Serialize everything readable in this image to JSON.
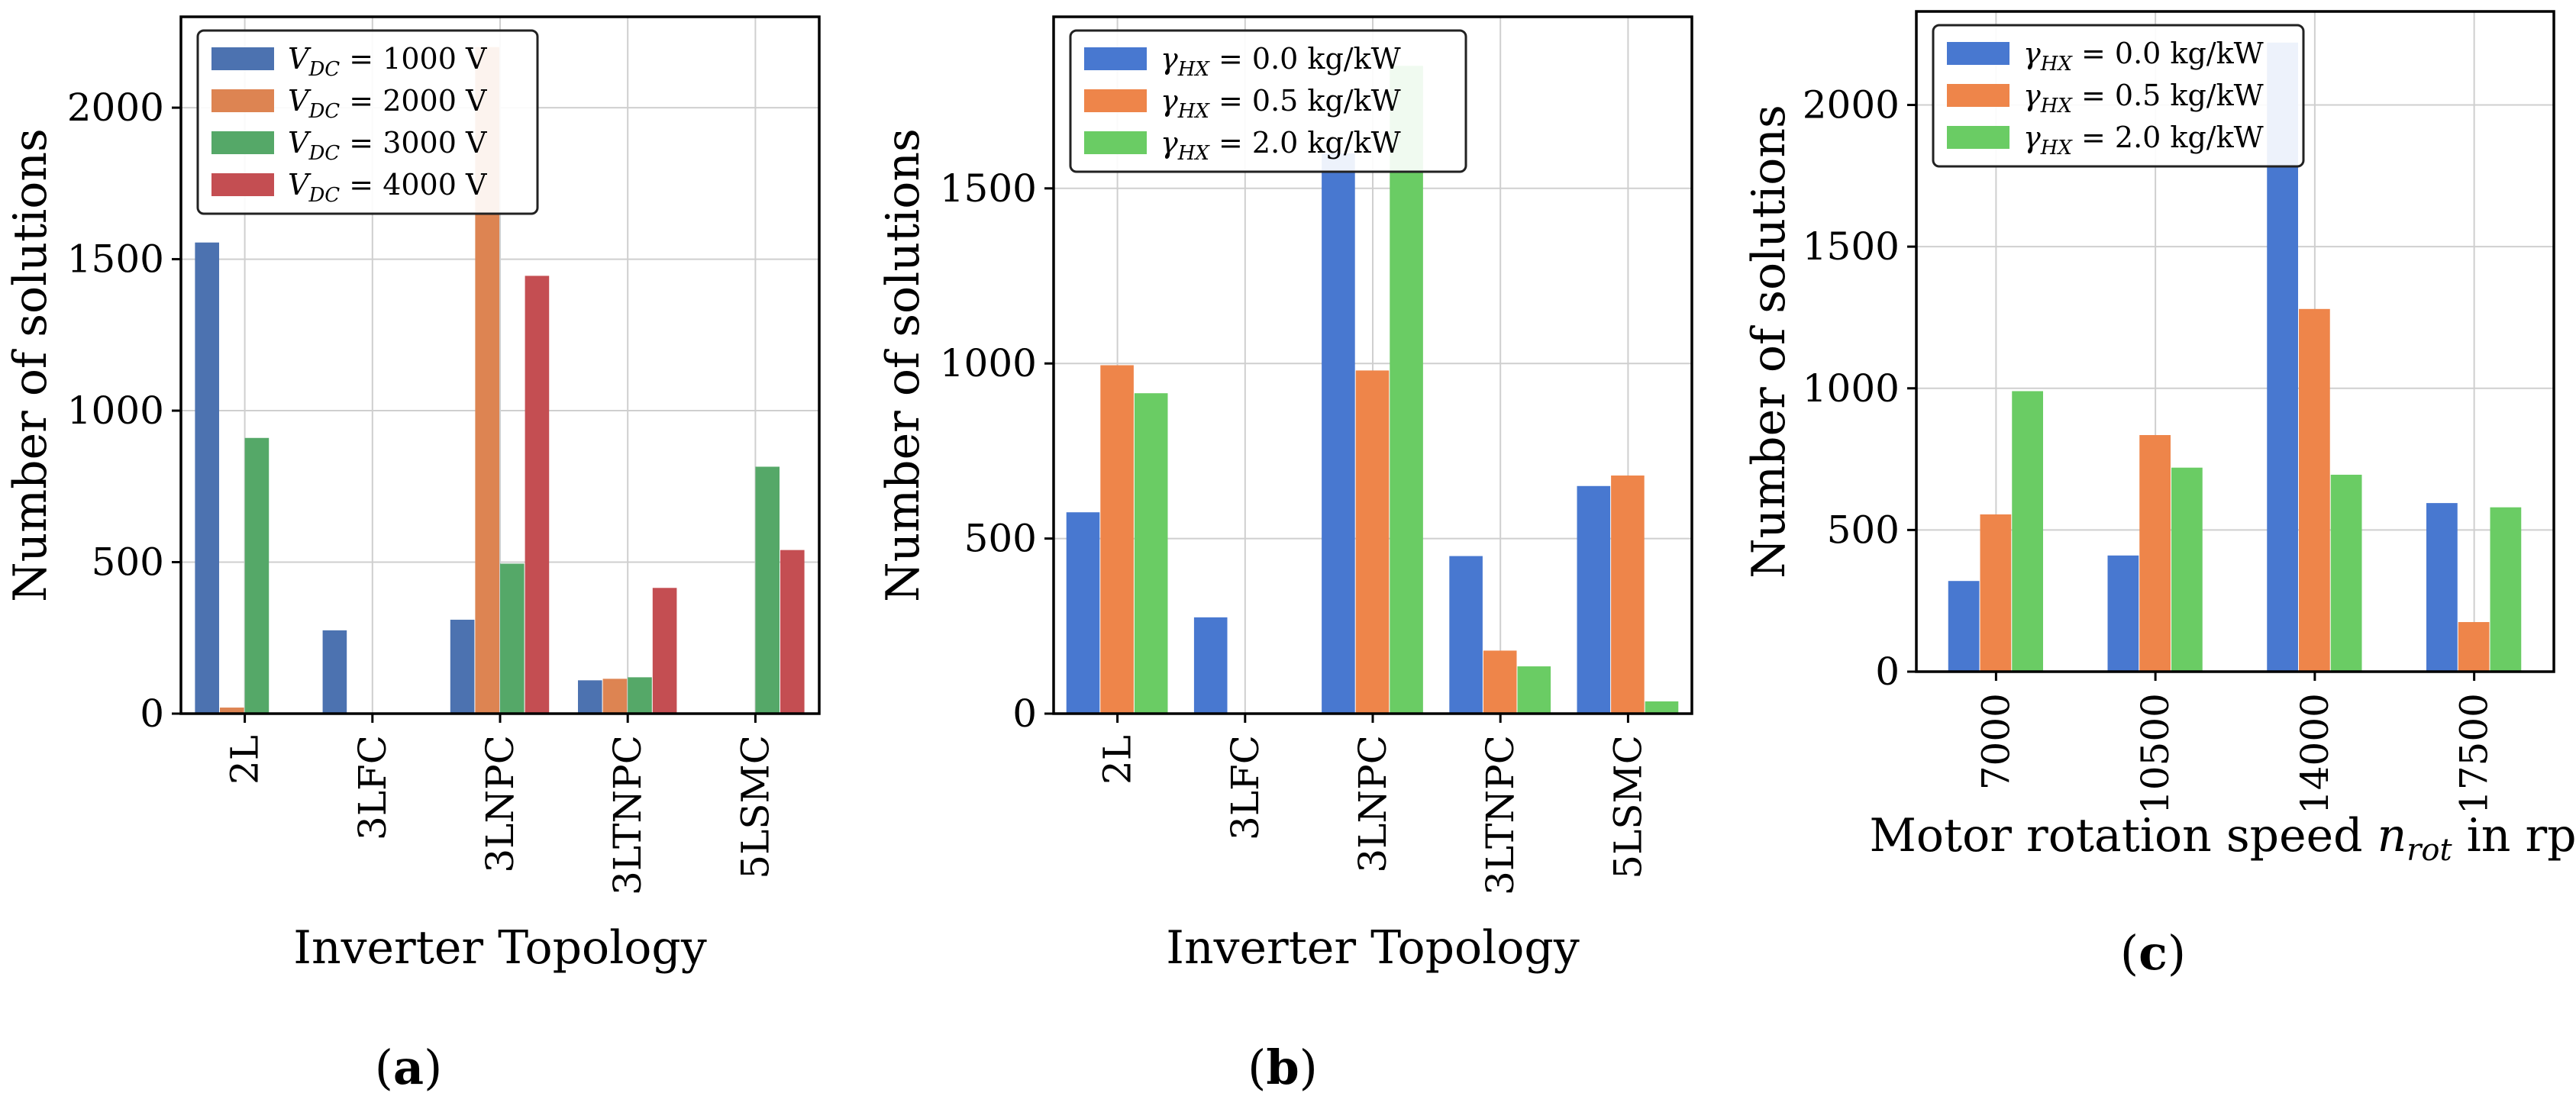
{
  "chart_data": [
    {
      "id": "a",
      "type": "bar",
      "caption": "a",
      "xlabel": "Inverter Topology",
      "ylabel": "Number of solutions",
      "ylim": [
        0,
        2300
      ],
      "yticks": [
        0,
        500,
        1000,
        1500,
        2000
      ],
      "ytick_labels": [
        "0",
        "500",
        "1000",
        "1500",
        "2000"
      ],
      "categories": [
        "2L",
        "3LFC",
        "3LNPC",
        "3LTNPC",
        "5LSMC"
      ],
      "grid": true,
      "legend_position": "top-left",
      "series": [
        {
          "name": "V_DC = 1000 V",
          "label_var": "V",
          "label_sub": "DC",
          "label_rest": " = 1000 V",
          "color": "#4c72b0",
          "values": [
            1555,
            275,
            310,
            110,
            0
          ]
        },
        {
          "name": "V_DC = 2000 V",
          "label_var": "V",
          "label_sub": "DC",
          "label_rest": " = 2000 V",
          "color": "#dd8452",
          "values": [
            20,
            0,
            2200,
            115,
            0
          ]
        },
        {
          "name": "V_DC = 3000 V",
          "label_var": "V",
          "label_sub": "DC",
          "label_rest": " = 3000 V",
          "color": "#55a868",
          "values": [
            910,
            0,
            495,
            120,
            815
          ]
        },
        {
          "name": "V_DC = 4000 V",
          "label_var": "V",
          "label_sub": "DC",
          "label_rest": " = 4000 V",
          "color": "#c44e52",
          "values": [
            0,
            0,
            1445,
            415,
            540
          ]
        }
      ]
    },
    {
      "id": "b",
      "type": "bar",
      "caption": "b",
      "xlabel": "Inverter Topology",
      "ylabel": "Number of solutions",
      "ylim": [
        0,
        1990
      ],
      "yticks": [
        0,
        500,
        1000,
        1500
      ],
      "ytick_labels": [
        "0",
        "500",
        "1000",
        "1500"
      ],
      "categories": [
        "2L",
        "3LFC",
        "3LNPC",
        "3LTNPC",
        "5LSMC"
      ],
      "grid": true,
      "legend_position": "top-left",
      "series": [
        {
          "name": "γ_HX = 0.0 kg/kW",
          "label_var": "γ",
          "label_sub": "HX",
          "label_rest": " = 0.0 kg/kW",
          "color": "#4878d0",
          "values": [
            575,
            275,
            1600,
            450,
            650
          ]
        },
        {
          "name": "γ_HX = 0.5 kg/kW",
          "label_var": "γ",
          "label_sub": "HX",
          "label_rest": " = 0.5 kg/kW",
          "color": "#ee854a",
          "values": [
            995,
            0,
            980,
            180,
            680
          ]
        },
        {
          "name": "γ_HX = 2.0 kg/kW",
          "label_var": "γ",
          "label_sub": "HX",
          "label_rest": " = 2.0 kg/kW",
          "color": "#6acc64",
          "values": [
            915,
            0,
            1850,
            135,
            35
          ]
        }
      ]
    },
    {
      "id": "c",
      "type": "bar",
      "caption": "c",
      "xlabel": "Motor rotation speed n_rot in rpm",
      "xlabel_pre": "Motor rotation speed ",
      "xlabel_var": "n",
      "xlabel_sub": "rot",
      "xlabel_post": " in rpm",
      "ylabel": "Number of solutions",
      "ylim": [
        0,
        2330
      ],
      "yticks": [
        0,
        500,
        1000,
        1500,
        2000
      ],
      "ytick_labels": [
        "0",
        "500",
        "1000",
        "1500",
        "2000"
      ],
      "categories": [
        "7000",
        "10500",
        "14000",
        "17500"
      ],
      "grid": true,
      "legend_position": "top-left",
      "series": [
        {
          "name": "γ_HX = 0.0 kg/kW",
          "label_var": "γ",
          "label_sub": "HX",
          "label_rest": " = 0.0 kg/kW",
          "color": "#4878d0",
          "values": [
            320,
            410,
            2220,
            595
          ]
        },
        {
          "name": "γ_HX = 0.5 kg/kW",
          "label_var": "γ",
          "label_sub": "HX",
          "label_rest": " = 0.5 kg/kW",
          "color": "#ee854a",
          "values": [
            555,
            835,
            1280,
            175
          ]
        },
        {
          "name": "γ_HX = 2.0 kg/kW",
          "label_var": "γ",
          "label_sub": "HX",
          "label_rest": " = 2.0 kg/kW",
          "color": "#6acc64",
          "values": [
            990,
            720,
            695,
            580
          ]
        }
      ]
    }
  ]
}
